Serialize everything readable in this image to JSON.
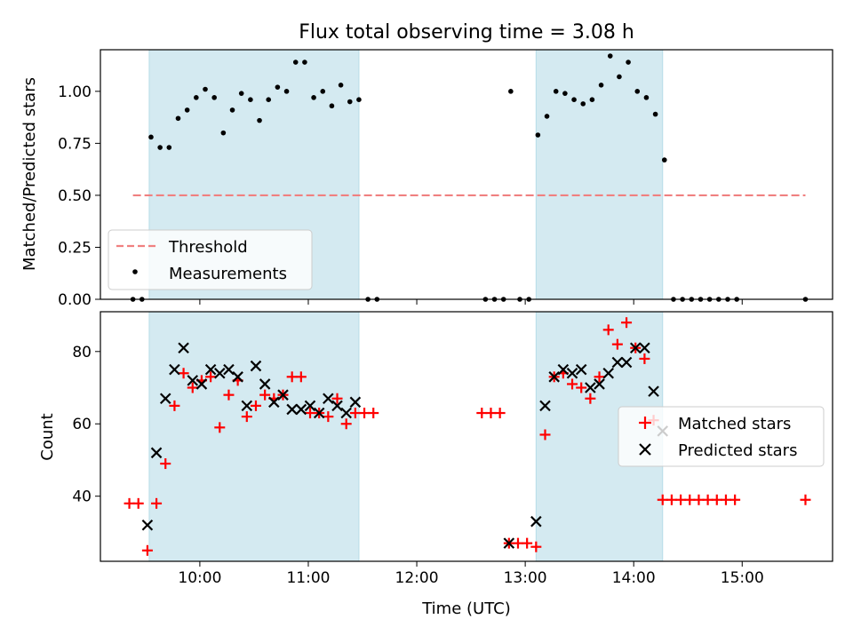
{
  "chart_data": {
    "title": "Flux total observing time = 3.08 h",
    "xlabel": "Time (UTC)",
    "x_ticks": [
      "10:00",
      "11:00",
      "12:00",
      "13:00",
      "14:00",
      "15:00"
    ],
    "shaded_intervals": [
      [
        "09:32",
        "11:28"
      ],
      [
        "13:06",
        "14:16"
      ]
    ],
    "shade_color": "#d4eaf1",
    "panels": [
      {
        "type": "scatter",
        "ylabel": "Matched/Predicted stars",
        "ylim": [
          0.0,
          1.2
        ],
        "y_ticks": [
          "0.00",
          "0.25",
          "0.50",
          "0.75",
          "1.00"
        ],
        "threshold": {
          "name": "Threshold",
          "value": 0.5,
          "x_range": [
            "09:23",
            "15:35"
          ],
          "color": "#f08080"
        },
        "legend": {
          "position": "lower-left",
          "entries": [
            "Threshold",
            "Measurements"
          ]
        },
        "series": [
          {
            "name": "Measurements",
            "color": "#000000",
            "marker": "dot",
            "points": [
              [
                "09:23",
                0.0
              ],
              [
                "09:28",
                0.0
              ],
              [
                "09:33",
                0.78
              ],
              [
                "09:38",
                0.73
              ],
              [
                "09:43",
                0.73
              ],
              [
                "09:48",
                0.87
              ],
              [
                "09:53",
                0.91
              ],
              [
                "09:58",
                0.97
              ],
              [
                "10:03",
                1.01
              ],
              [
                "10:08",
                0.97
              ],
              [
                "10:13",
                0.8
              ],
              [
                "10:18",
                0.91
              ],
              [
                "10:23",
                0.99
              ],
              [
                "10:28",
                0.96
              ],
              [
                "10:33",
                0.86
              ],
              [
                "10:38",
                0.96
              ],
              [
                "10:43",
                1.02
              ],
              [
                "10:48",
                1.0
              ],
              [
                "10:53",
                1.14
              ],
              [
                "10:58",
                1.14
              ],
              [
                "11:03",
                0.97
              ],
              [
                "11:08",
                1.0
              ],
              [
                "11:13",
                0.93
              ],
              [
                "11:18",
                1.03
              ],
              [
                "11:23",
                0.95
              ],
              [
                "11:28",
                0.96
              ],
              [
                "11:33",
                0.0
              ],
              [
                "11:38",
                0.0
              ],
              [
                "12:38",
                0.0
              ],
              [
                "12:43",
                0.0
              ],
              [
                "12:48",
                0.0
              ],
              [
                "12:52",
                1.0
              ],
              [
                "12:57",
                0.0
              ],
              [
                "13:02",
                0.0
              ],
              [
                "13:07",
                0.79
              ],
              [
                "13:12",
                0.88
              ],
              [
                "13:17",
                1.0
              ],
              [
                "13:22",
                0.99
              ],
              [
                "13:27",
                0.96
              ],
              [
                "13:32",
                0.94
              ],
              [
                "13:37",
                0.96
              ],
              [
                "13:42",
                1.03
              ],
              [
                "13:47",
                1.17
              ],
              [
                "13:52",
                1.07
              ],
              [
                "13:57",
                1.14
              ],
              [
                "14:02",
                1.0
              ],
              [
                "14:07",
                0.97
              ],
              [
                "14:12",
                0.89
              ],
              [
                "14:17",
                0.67
              ],
              [
                "14:22",
                0.0
              ],
              [
                "14:27",
                0.0
              ],
              [
                "14:32",
                0.0
              ],
              [
                "14:37",
                0.0
              ],
              [
                "14:42",
                0.0
              ],
              [
                "14:47",
                0.0
              ],
              [
                "14:52",
                0.0
              ],
              [
                "14:57",
                0.0
              ],
              [
                "15:35",
                0.0
              ]
            ]
          }
        ]
      },
      {
        "type": "scatter",
        "ylabel": "Count",
        "ylim": [
          22,
          91
        ],
        "y_ticks": [
          "40",
          "60",
          "80"
        ],
        "legend": {
          "position": "right",
          "entries": [
            "Matched stars",
            "Predicted stars"
          ]
        },
        "series": [
          {
            "name": "Matched stars",
            "color": "#ff0000",
            "marker": "plus",
            "points": [
              [
                "09:21",
                38
              ],
              [
                "09:26",
                38
              ],
              [
                "09:31",
                25
              ],
              [
                "09:36",
                38
              ],
              [
                "09:41",
                49
              ],
              [
                "09:46",
                65
              ],
              [
                "09:51",
                74
              ],
              [
                "09:56",
                70
              ],
              [
                "10:01",
                72
              ],
              [
                "10:06",
                73
              ],
              [
                "10:11",
                59
              ],
              [
                "10:16",
                68
              ],
              [
                "10:21",
                72
              ],
              [
                "10:26",
                62
              ],
              [
                "10:31",
                65
              ],
              [
                "10:36",
                68
              ],
              [
                "10:41",
                67
              ],
              [
                "10:46",
                68
              ],
              [
                "10:51",
                73
              ],
              [
                "10:56",
                73
              ],
              [
                "11:01",
                63
              ],
              [
                "11:06",
                63
              ],
              [
                "11:11",
                62
              ],
              [
                "11:16",
                67
              ],
              [
                "11:21",
                60
              ],
              [
                "11:26",
                63
              ],
              [
                "11:31",
                63
              ],
              [
                "11:36",
                63
              ],
              [
                "12:36",
                63
              ],
              [
                "12:41",
                63
              ],
              [
                "12:46",
                63
              ],
              [
                "12:51",
                27
              ],
              [
                "12:56",
                27
              ],
              [
                "13:01",
                27
              ],
              [
                "13:06",
                26
              ],
              [
                "13:11",
                57
              ],
              [
                "13:16",
                73
              ],
              [
                "13:21",
                74
              ],
              [
                "13:26",
                71
              ],
              [
                "13:31",
                70
              ],
              [
                "13:36",
                67
              ],
              [
                "13:41",
                73
              ],
              [
                "13:46",
                86
              ],
              [
                "13:51",
                82
              ],
              [
                "13:56",
                88
              ],
              [
                "14:01",
                81
              ],
              [
                "14:06",
                78
              ],
              [
                "14:11",
                61
              ],
              [
                "14:16",
                39
              ],
              [
                "14:21",
                39
              ],
              [
                "14:26",
                39
              ],
              [
                "14:31",
                39
              ],
              [
                "14:36",
                39
              ],
              [
                "14:41",
                39
              ],
              [
                "14:46",
                39
              ],
              [
                "14:51",
                39
              ],
              [
                "14:56",
                39
              ],
              [
                "15:35",
                39
              ]
            ]
          },
          {
            "name": "Predicted stars",
            "color": "#000000",
            "marker": "x",
            "points": [
              [
                "09:31",
                32
              ],
              [
                "09:36",
                52
              ],
              [
                "09:41",
                67
              ],
              [
                "09:46",
                75
              ],
              [
                "09:51",
                81
              ],
              [
                "09:56",
                72
              ],
              [
                "10:01",
                71
              ],
              [
                "10:06",
                75
              ],
              [
                "10:11",
                74
              ],
              [
                "10:16",
                75
              ],
              [
                "10:21",
                73
              ],
              [
                "10:26",
                65
              ],
              [
                "10:31",
                76
              ],
              [
                "10:36",
                71
              ],
              [
                "10:41",
                66
              ],
              [
                "10:46",
                68
              ],
              [
                "10:51",
                64
              ],
              [
                "10:56",
                64
              ],
              [
                "11:01",
                65
              ],
              [
                "11:06",
                63
              ],
              [
                "11:11",
                67
              ],
              [
                "11:16",
                65
              ],
              [
                "11:21",
                63
              ],
              [
                "11:26",
                66
              ],
              [
                "12:51",
                27
              ],
              [
                "13:06",
                33
              ],
              [
                "13:11",
                65
              ],
              [
                "13:16",
                73
              ],
              [
                "13:21",
                75
              ],
              [
                "13:26",
                74
              ],
              [
                "13:31",
                75
              ],
              [
                "13:36",
                70
              ],
              [
                "13:41",
                71
              ],
              [
                "13:46",
                74
              ],
              [
                "13:51",
                77
              ],
              [
                "13:56",
                77
              ],
              [
                "14:01",
                81
              ],
              [
                "14:06",
                81
              ],
              [
                "14:11",
                69
              ],
              [
                "14:16",
                58
              ]
            ]
          }
        ]
      }
    ]
  }
}
